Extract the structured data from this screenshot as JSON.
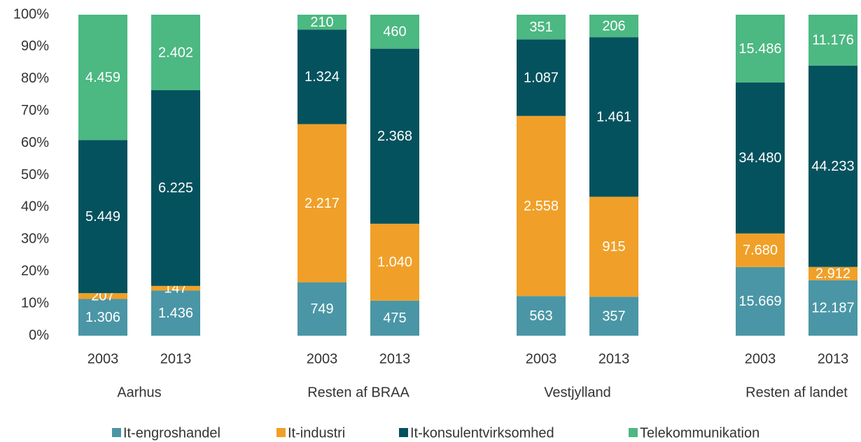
{
  "chart_data": {
    "type": "bar",
    "stacking": "percent",
    "groups": [
      "Aarhus",
      "Resten af BRAA",
      "Vestjylland",
      "Resten af landet"
    ],
    "categories": [
      "2003",
      "2013",
      "2003",
      "2013",
      "2003",
      "2013",
      "2003",
      "2013"
    ],
    "series": [
      {
        "name": "It-engroshandel",
        "color": "#4a96a6",
        "values": [
          1306,
          1436,
          749,
          475,
          563,
          357,
          15669,
          12187
        ],
        "value_labels": [
          "1.306",
          "1.436",
          "749",
          "475",
          "563",
          "357",
          "15.669",
          "12.187"
        ]
      },
      {
        "name": "It-industri",
        "color": "#f0a028",
        "values": [
          207,
          147,
          2217,
          1040,
          2558,
          915,
          7680,
          2912
        ],
        "value_labels": [
          "207",
          "147",
          "2.217",
          "1.040",
          "2.558",
          "915",
          "7.680",
          "2.912"
        ]
      },
      {
        "name": "It-konsulentvirksomhed",
        "color": "#04525e",
        "values": [
          5449,
          6225,
          1324,
          2368,
          1087,
          1461,
          34480,
          44233
        ],
        "value_labels": [
          "5.449",
          "6.225",
          "1.324",
          "2.368",
          "1.087",
          "1.461",
          "34.480",
          "44.233"
        ]
      },
      {
        "name": "Telekommunikation",
        "color": "#4cb882",
        "values": [
          4459,
          2402,
          210,
          460,
          351,
          206,
          15486,
          11176
        ],
        "value_labels": [
          "4.459",
          "2.402",
          "210",
          "460",
          "351",
          "206",
          "15.486",
          "11.176"
        ]
      }
    ],
    "ylim": [
      0,
      100
    ],
    "yticks": [
      {
        "value": 0,
        "label": "0%"
      },
      {
        "value": 10,
        "label": "10%"
      },
      {
        "value": 20,
        "label": "20%"
      },
      {
        "value": 30,
        "label": "30%"
      },
      {
        "value": 40,
        "label": "40%"
      },
      {
        "value": 50,
        "label": "50%"
      },
      {
        "value": 60,
        "label": "60%"
      },
      {
        "value": 70,
        "label": "70%"
      },
      {
        "value": 80,
        "label": "80%"
      },
      {
        "value": 90,
        "label": "90%"
      },
      {
        "value": 100,
        "label": "100%"
      }
    ],
    "grid": false,
    "legend": "bottom"
  }
}
